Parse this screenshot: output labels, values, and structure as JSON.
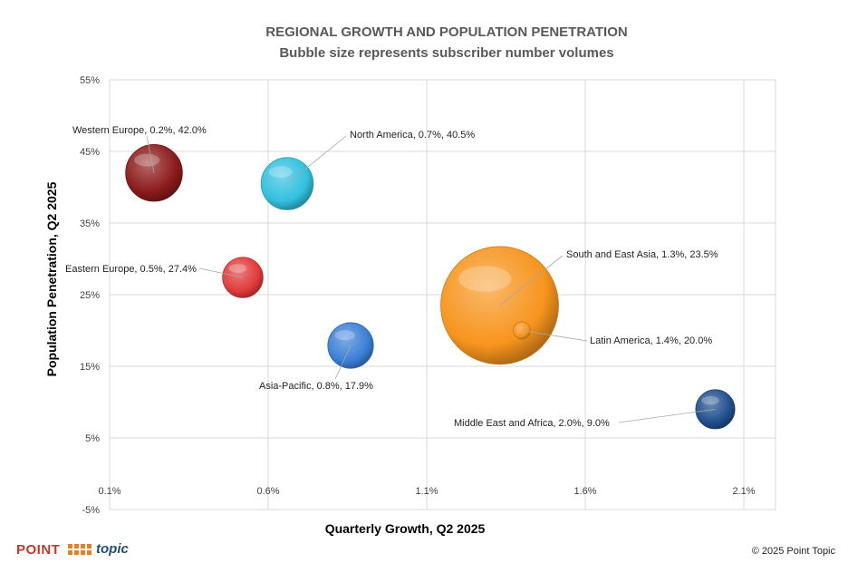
{
  "chart_data": {
    "type": "bubble",
    "title": "REGIONAL GROWTH AND POPULATION PENETRATION",
    "subtitle": "Bubble size represents subscriber number volumes",
    "xlabel": "Quarterly Growth, Q2 2025",
    "ylabel": "Population Penetration, Q2 2025",
    "xlim": [
      0.1,
      2.2
    ],
    "ylim": [
      -5,
      55
    ],
    "x_ticks": [
      0.1,
      0.6,
      1.1,
      1.6,
      2.1
    ],
    "x_tick_labels": [
      "0.1%",
      "0.6%",
      "1.1%",
      "1.6%",
      "2.1%"
    ],
    "y_ticks": [
      -5,
      5,
      15,
      25,
      35,
      45,
      55
    ],
    "y_tick_labels": [
      "-5%",
      "5%",
      "15%",
      "25%",
      "35%",
      "45%",
      "55%"
    ],
    "grid": true,
    "points": [
      {
        "label": "Western Europe, 0.2%, 42.0%",
        "x": 0.24,
        "y": 42.0,
        "size": 6.5,
        "color": "#8b1a1a"
      },
      {
        "label": "North America, 0.7%, 40.5%",
        "x": 0.66,
        "y": 40.5,
        "size": 5.5,
        "color": "#31c0de"
      },
      {
        "label": "Eastern Europe, 0.5%, 27.4%",
        "x": 0.52,
        "y": 27.4,
        "size": 3.3,
        "color": "#e03a3a"
      },
      {
        "label": "Asia-Pacific, 0.8%, 17.9%",
        "x": 0.86,
        "y": 17.9,
        "size": 4.2,
        "color": "#3a7fd6"
      },
      {
        "label": "South and East Asia, 1.3%, 23.5%",
        "x": 1.33,
        "y": 23.5,
        "size": 28,
        "color": "#f7941d"
      },
      {
        "label": "Latin America, 1.4%, 20.0%",
        "x": 1.4,
        "y": 20.0,
        "size": 0.6,
        "color": "#f7941d"
      },
      {
        "label": "Middle East and Africa, 2.0%, 9.0%",
        "x": 2.01,
        "y": 9.0,
        "size": 3.1,
        "color": "#1f4e8c"
      }
    ]
  },
  "footer": {
    "logo_word": "POINT",
    "logo_topic": "topic",
    "copyright": "© 2025 Point Topic"
  }
}
